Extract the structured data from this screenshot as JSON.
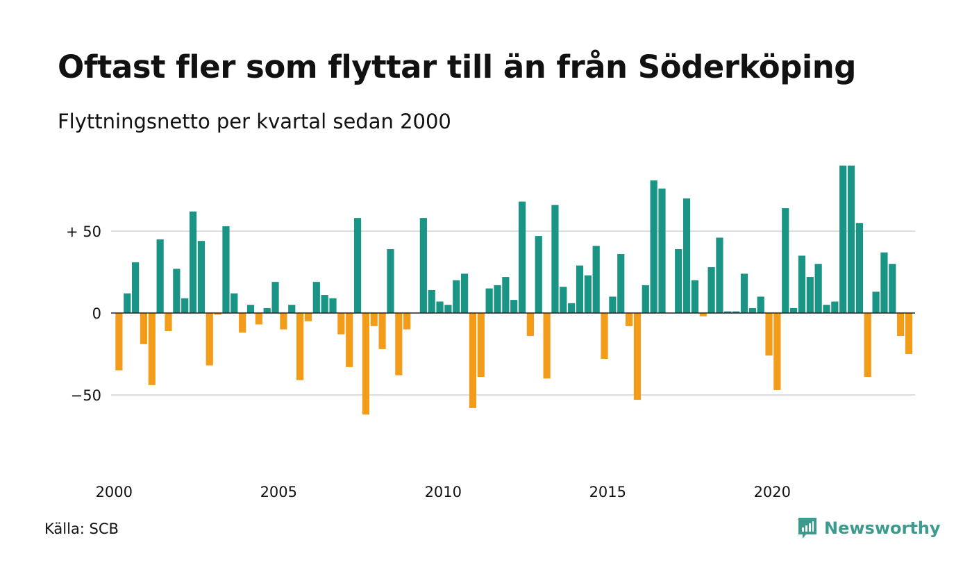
{
  "title": "Oftast fler som flyttar till än från Söderköping",
  "subtitle": "Flyttningsnetto per kvartal sedan 2000",
  "source": "Källa: SCB",
  "brand": {
    "name": "Newsworthy",
    "icon": "newsworthy-logo-icon",
    "color": "#3c9b8e"
  },
  "colors": {
    "positive": "#1a9485",
    "negative": "#f39c1a",
    "grid": "#dddddd",
    "zero_line": "#222222"
  },
  "chart_data": {
    "type": "bar",
    "title": "Oftast fler som flyttar till än från Söderköping",
    "subtitle": "Flyttningsnetto per kvartal sedan 2000",
    "xlabel": "",
    "ylabel": "",
    "x_start": "2000 Q1",
    "x_ticks": [
      "2000",
      "2005",
      "2010",
      "2015",
      "2020"
    ],
    "y_ticks": [
      50,
      0,
      -50
    ],
    "y_tick_labels": [
      "+ 50",
      "0",
      "−50"
    ],
    "ylim": [
      -95,
      90
    ],
    "grid": true,
    "values": [
      -35,
      12,
      31,
      -19,
      -44,
      45,
      -11,
      27,
      9,
      62,
      44,
      -32,
      -1,
      53,
      12,
      -12,
      5,
      -7,
      3,
      19,
      -10,
      5,
      -41,
      -5,
      19,
      11,
      9,
      -13,
      -33,
      58,
      -62,
      -8,
      -22,
      39,
      -38,
      -10,
      0,
      58,
      14,
      7,
      5,
      20,
      24,
      -58,
      -39,
      15,
      17,
      22,
      8,
      68,
      -14,
      47,
      -40,
      66,
      16,
      6,
      29,
      23,
      41,
      -28,
      10,
      36,
      -8,
      -53,
      17,
      81,
      76,
      0,
      39,
      70,
      20,
      -2,
      28,
      46,
      1,
      1,
      24,
      3,
      10,
      -26,
      -47,
      64,
      3,
      35,
      22,
      30,
      5,
      7,
      90,
      90,
      55,
      -39,
      13,
      37,
      30,
      -14,
      -25
    ]
  }
}
